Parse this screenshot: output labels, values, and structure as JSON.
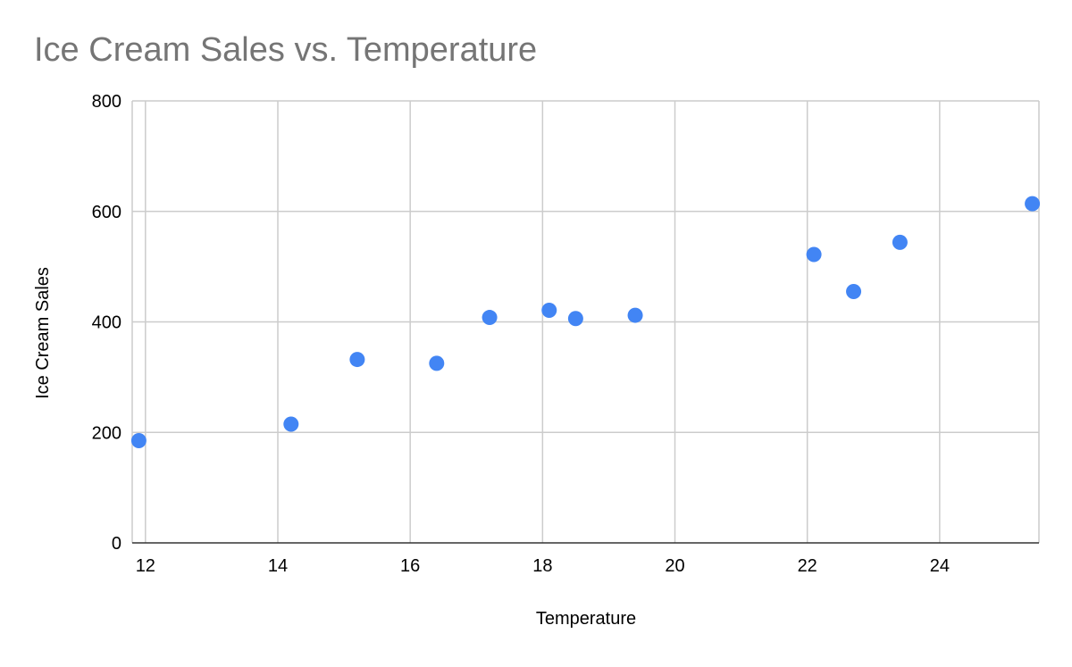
{
  "chart_data": {
    "type": "scatter",
    "title": "Ice Cream Sales vs. Temperature",
    "xlabel": "Temperature",
    "ylabel": "Ice Cream Sales",
    "xlim": [
      11.8,
      25.5
    ],
    "ylim": [
      0,
      800
    ],
    "x_ticks": [
      12,
      14,
      16,
      18,
      20,
      22,
      24
    ],
    "y_ticks": [
      0,
      200,
      400,
      600,
      800
    ],
    "grid": true,
    "legend": "none",
    "series": [
      {
        "color": "#4285f4",
        "points": [
          {
            "x": 11.9,
            "y": 185
          },
          {
            "x": 14.2,
            "y": 215
          },
          {
            "x": 15.2,
            "y": 332
          },
          {
            "x": 16.4,
            "y": 325
          },
          {
            "x": 17.2,
            "y": 408
          },
          {
            "x": 18.1,
            "y": 421
          },
          {
            "x": 18.5,
            "y": 406
          },
          {
            "x": 19.4,
            "y": 412
          },
          {
            "x": 22.1,
            "y": 522
          },
          {
            "x": 22.7,
            "y": 455
          },
          {
            "x": 23.4,
            "y": 544
          },
          {
            "x": 25.4,
            "y": 614
          }
        ]
      }
    ]
  }
}
